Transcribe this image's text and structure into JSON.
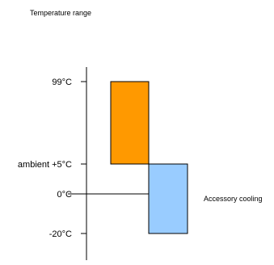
{
  "chart_data": {
    "type": "bar",
    "title": "Temperature range",
    "tick_labels": [
      "99°C",
      "ambient +5°C",
      "0°C",
      "-20°C"
    ],
    "bars": [
      {
        "name": "",
        "range": [
          "ambient +5°C",
          "99°C"
        ],
        "color": "#ff9900"
      },
      {
        "name": "Accessory cooling",
        "range": [
          "-20°C",
          "ambient +5°C"
        ],
        "color": "#99ccff"
      }
    ],
    "reference_line": "0°C",
    "grid": false
  }
}
